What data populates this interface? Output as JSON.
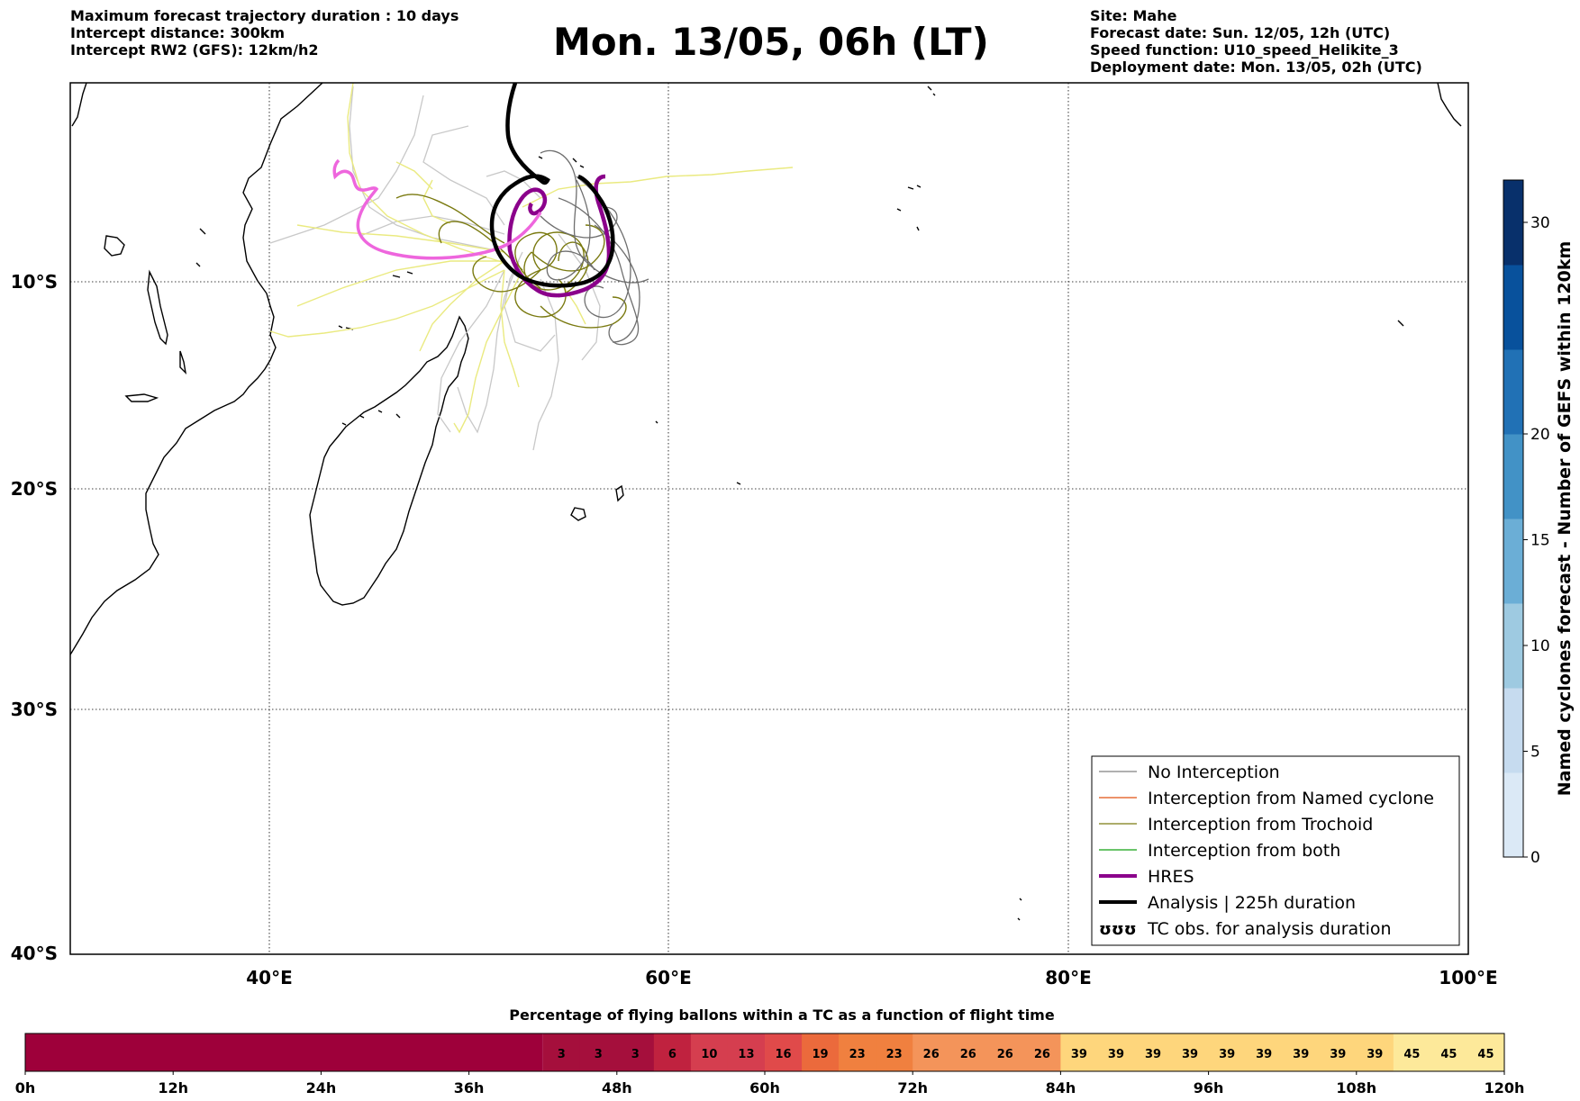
{
  "title": "Mon. 13/05, 06h (LT)",
  "header_left": [
    "Maximum forecast trajectory duration : 10 days",
    "Intercept distance: 300km",
    "Intercept RW2 (GFS):  12km/h2"
  ],
  "header_right": [
    "Site: Mahe",
    "Forecast date: Sun. 12/05, 12h (UTC)",
    "Speed function: U10_speed_Helikite_3",
    "Deployment date: Mon. 13/05, 02h (UTC)"
  ],
  "map": {
    "lon_range": [
      30,
      100
    ],
    "lat_range": [
      -40,
      2
    ],
    "lat_labels": [
      "10°S",
      "20°S",
      "30°S",
      "40°S"
    ],
    "lon_labels": [
      "40°E",
      "60°E",
      "80°E",
      "100°E"
    ]
  },
  "legend": [
    {
      "label": "No Interception",
      "color": "#808080",
      "width": 1.2
    },
    {
      "label": "Interception from Named cyclone",
      "color": "#e05010",
      "width": 1.2
    },
    {
      "label": "Interception from Trochoid",
      "color": "#7a7a10",
      "width": 1.2
    },
    {
      "label": "Interception from both",
      "color": "#10a010",
      "width": 1.2
    },
    {
      "label": "HRES",
      "color": "#8b008b",
      "width": 4
    },
    {
      "label": "Analysis | 225h duration",
      "color": "#000000",
      "width": 4
    },
    {
      "label": "TC obs. for analysis duration",
      "color": "#000000",
      "symbol": "ʊʊʊ"
    }
  ],
  "right_colorbar": {
    "label": "Named cyclones forecast - Number of GEFS within 120km",
    "ticks": [
      "0",
      "5",
      "10",
      "15",
      "20",
      "30"
    ],
    "colors": [
      "#dbe9f6",
      "#c6dbef",
      "#9ecae1",
      "#6baed6",
      "#4292c6",
      "#2171b5",
      "#08519c",
      "#08306b"
    ]
  },
  "bottom_colorbar": {
    "title": "Percentage of flying ballons within a TC as a function of flight time",
    "cells": [
      "3",
      "3",
      "3",
      "6",
      "10",
      "13",
      "16",
      "19",
      "23",
      "23",
      "26",
      "26",
      "26",
      "26",
      "39",
      "39",
      "39",
      "39",
      "39",
      "39",
      "39",
      "39",
      "39",
      "45",
      "45",
      "45"
    ],
    "cell_colors": [
      "#a50f3c",
      "#a50f3c",
      "#a50f3c",
      "#c0223f",
      "#d53e4f",
      "#d53e4f",
      "#e04a4a",
      "#eb6a3c",
      "#f0803f",
      "#f0803f",
      "#f4945a",
      "#f4945a",
      "#f4945a",
      "#f4945a",
      "#fed67c",
      "#fed67c",
      "#fed67c",
      "#fed67c",
      "#fed67c",
      "#fed67c",
      "#fed67c",
      "#fed67c",
      "#fed67c",
      "#fde99a",
      "#fde99a",
      "#fde99a"
    ],
    "empty_color": "#9e003a",
    "ticks": [
      "0h",
      "12h",
      "24h",
      "36h",
      "48h",
      "60h",
      "72h",
      "84h",
      "96h",
      "108h",
      "120h"
    ]
  }
}
